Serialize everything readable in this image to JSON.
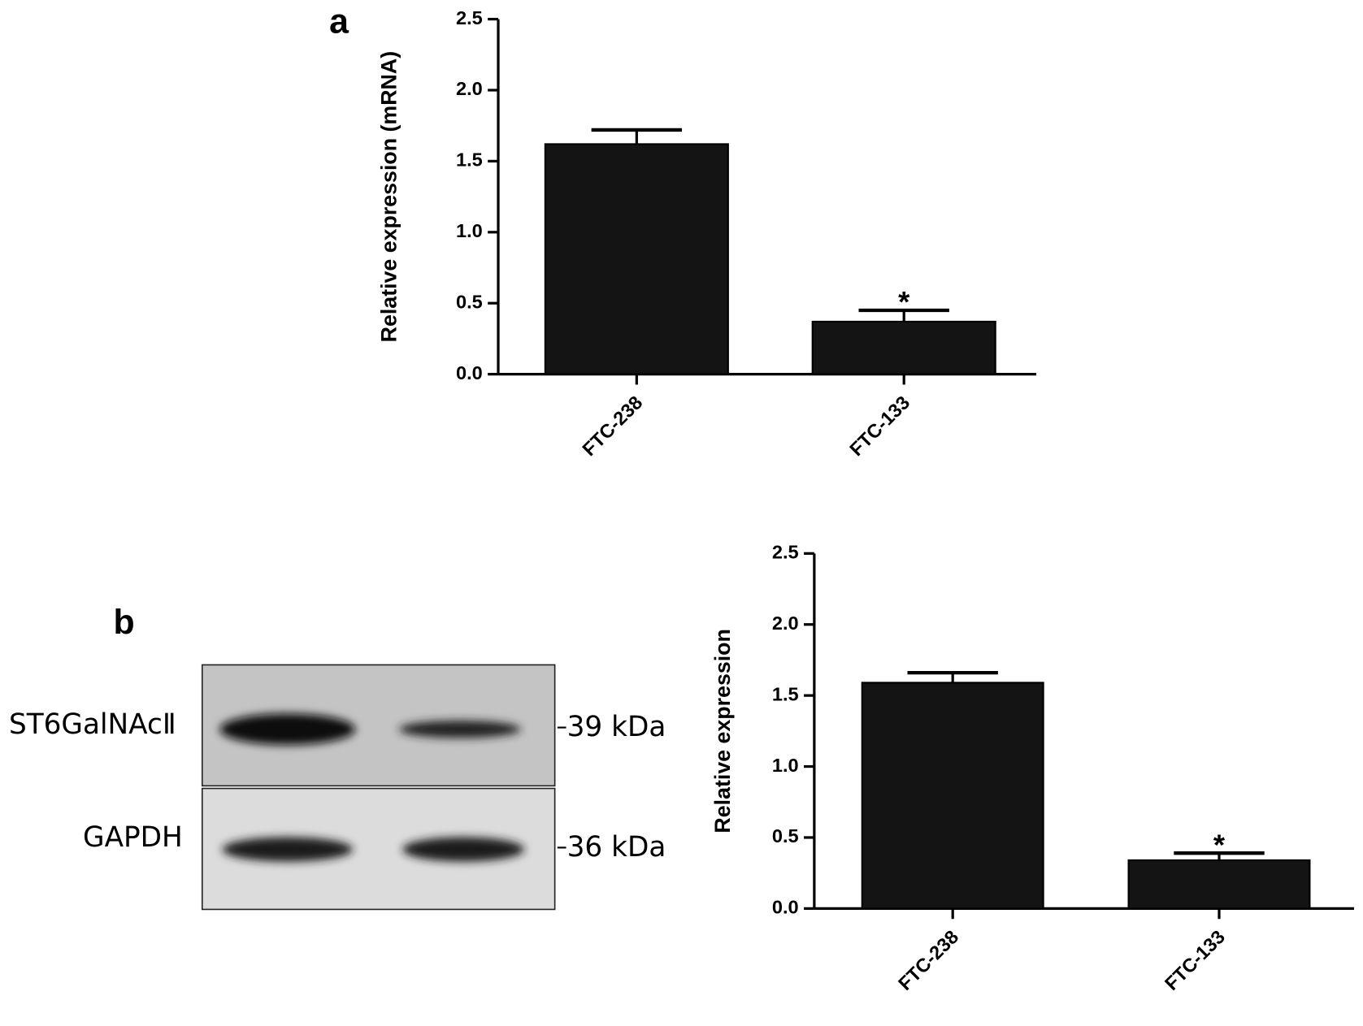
{
  "chart_data": [
    {
      "type": "bar",
      "panel_label": "a",
      "y_label": "Relative expression (mRNA)",
      "categories": [
        "FTC-238",
        "FTC-133"
      ],
      "values": [
        1.62,
        0.37
      ],
      "errors": [
        0.1,
        0.08
      ],
      "annotations": [
        null,
        "*"
      ],
      "color": "#141414",
      "ylim": [
        0,
        2.5
      ],
      "yticks": [
        {
          "value": 0,
          "label": "0.0"
        },
        {
          "value": 0.5,
          "label": "0.5"
        },
        {
          "value": 1,
          "label": "1.0"
        },
        {
          "value": 1.5,
          "label": "1.5"
        },
        {
          "value": 2,
          "label": "2.0"
        },
        {
          "value": 2.5,
          "label": "2.5"
        }
      ]
    },
    {
      "type": "bar",
      "panel_label": "b",
      "y_label": "Relative expression",
      "categories": [
        "FTC-238",
        "FTC-133"
      ],
      "values": [
        1.59,
        0.34
      ],
      "errors": [
        0.07,
        0.05
      ],
      "annotations": [
        null,
        "*"
      ],
      "color": "#141414",
      "ylim": [
        0,
        2.5
      ],
      "yticks": [
        {
          "value": 0,
          "label": "0.0"
        },
        {
          "value": 0.5,
          "label": "0.5"
        },
        {
          "value": 1,
          "label": "1.0"
        },
        {
          "value": 1.5,
          "label": "1.5"
        },
        {
          "value": 2,
          "label": "2.0"
        },
        {
          "value": 2.5,
          "label": "2.5"
        }
      ]
    }
  ],
  "blot": {
    "rows": [
      {
        "protein": "ST6GalNAcⅡ",
        "size": "39 kDa"
      },
      {
        "protein": "GAPDH",
        "size": "36 kDa"
      }
    ]
  }
}
